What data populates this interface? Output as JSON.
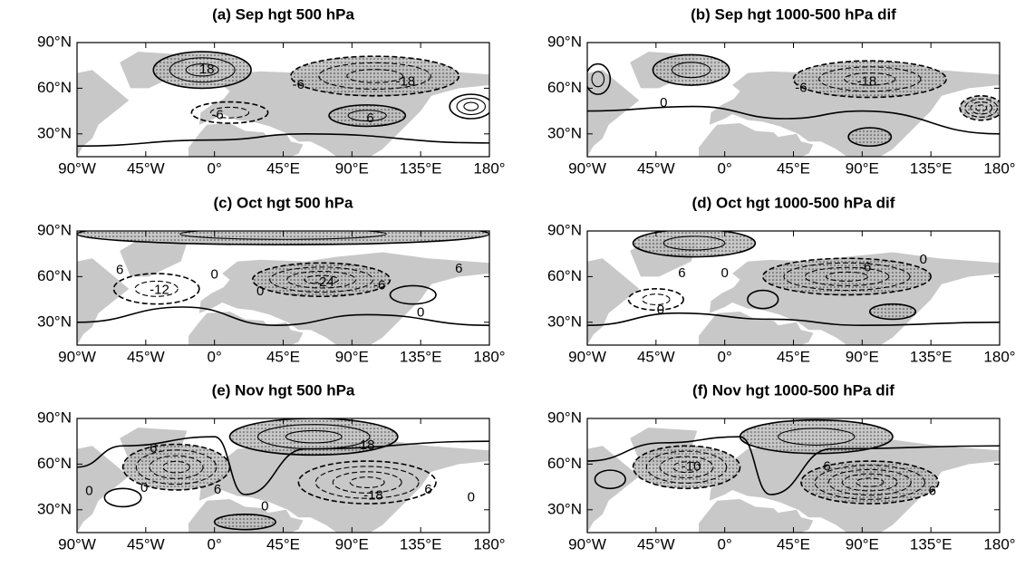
{
  "lon_ticks": [
    {
      "value": -90,
      "label": "90°W"
    },
    {
      "value": -45,
      "label": "45°W"
    },
    {
      "value": 0,
      "label": "0°"
    },
    {
      "value": 45,
      "label": "45°E"
    },
    {
      "value": 90,
      "label": "90°E"
    },
    {
      "value": 135,
      "label": "135°E"
    },
    {
      "value": 180,
      "label": "180°"
    }
  ],
  "lat_ticks": [
    {
      "value": 30,
      "label": "30°N"
    },
    {
      "value": 60,
      "label": "60°N"
    },
    {
      "value": 90,
      "label": "90°N"
    }
  ],
  "panels": [
    {
      "title": "(a) Sep  hgt 500 hPa",
      "contour_labels": [
        18,
        -6,
        -18,
        -6,
        6
      ]
    },
    {
      "title": "(b) Sep  hgt 1000-500 hPa dif",
      "contour_labels": [
        -6,
        0,
        -18
      ]
    },
    {
      "title": "(c) Oct  hgt 500 hPa",
      "contour_labels": [
        6,
        -12,
        0,
        0,
        -24,
        -6,
        6,
        0
      ]
    },
    {
      "title": "(d) Oct  hgt 1000-500 hPa dif",
      "contour_labels": [
        6,
        0,
        -6,
        0,
        0
      ]
    },
    {
      "title": "(e) Nov  hgt 500 hPa",
      "contour_labels": [
        6,
        0,
        0,
        6,
        18,
        -18,
        6,
        0,
        0
      ]
    },
    {
      "title": "(f) Nov  hgt 1000-500 hPa dif",
      "contour_labels": [
        -10,
        6,
        6
      ]
    }
  ]
}
